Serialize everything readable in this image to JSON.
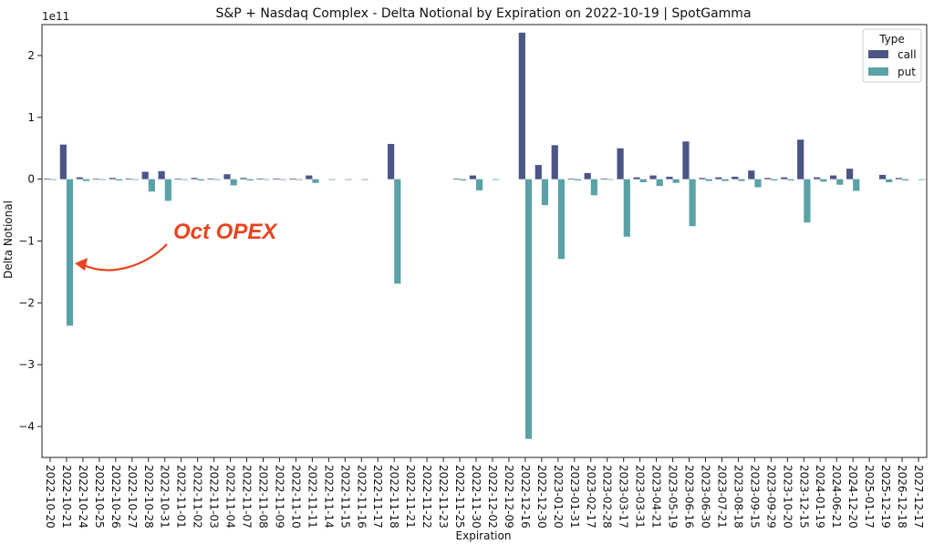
{
  "chart_data": {
    "type": "bar",
    "title": "S&P + Nasdaq Complex - Delta Notional by Expiration on 2022-10-19 | SpotGamma",
    "xlabel": "Expiration",
    "ylabel": "Delta Notional",
    "y_scale_label": "1e11",
    "y_unit": 100000000000,
    "ylim": [
      -4.5,
      2.5
    ],
    "yticks": [
      -4,
      -3,
      -2,
      -1,
      0,
      1,
      2
    ],
    "grid": false,
    "legend": {
      "title": "Type",
      "placement": "top-right"
    },
    "categories": [
      "2022-10-20",
      "2022-10-21",
      "2022-10-24",
      "2022-10-25",
      "2022-10-26",
      "2022-10-27",
      "2022-10-28",
      "2022-10-31",
      "2022-11-01",
      "2022-11-02",
      "2022-11-03",
      "2022-11-04",
      "2022-11-07",
      "2022-11-08",
      "2022-11-09",
      "2022-11-10",
      "2022-11-11",
      "2022-11-14",
      "2022-11-15",
      "2022-11-16",
      "2022-11-17",
      "2022-11-18",
      "2022-11-21",
      "2022-11-22",
      "2022-11-23",
      "2022-11-25",
      "2022-11-30",
      "2022-12-02",
      "2022-12-09",
      "2022-12-16",
      "2022-12-30",
      "2023-01-20",
      "2023-01-31",
      "2023-02-17",
      "2023-02-28",
      "2023-03-17",
      "2023-03-31",
      "2023-04-21",
      "2023-05-19",
      "2023-06-16",
      "2023-06-30",
      "2023-07-21",
      "2023-08-18",
      "2023-09-15",
      "2023-09-29",
      "2023-10-20",
      "2023-12-15",
      "2024-01-19",
      "2024-06-21",
      "2024-12-20",
      "2025-01-17",
      "2025-12-19",
      "2026-12-18",
      "2027-12-17"
    ],
    "series": [
      {
        "name": "call",
        "color": "#4b5586",
        "values": [
          0.01,
          0.56,
          0.03,
          0.01,
          0.02,
          0.01,
          0.12,
          0.13,
          0.01,
          0.02,
          0.01,
          0.08,
          0.02,
          0.01,
          0.01,
          0.01,
          0.06,
          0.0,
          0.0,
          0.0,
          0.0,
          0.57,
          0.0,
          0.0,
          0.0,
          0.01,
          0.06,
          0.0,
          0.0,
          2.37,
          0.23,
          0.55,
          0.01,
          0.1,
          0.01,
          0.5,
          0.03,
          0.06,
          0.04,
          0.61,
          0.02,
          0.03,
          0.04,
          0.14,
          0.02,
          0.03,
          0.64,
          0.03,
          0.06,
          0.17,
          0.0,
          0.07,
          0.02,
          0.0
        ]
      },
      {
        "name": "put",
        "color": "#5aa2a6",
        "values": [
          -0.01,
          -2.37,
          -0.03,
          -0.01,
          -0.02,
          -0.01,
          -0.2,
          -0.35,
          -0.01,
          -0.02,
          -0.01,
          -0.1,
          -0.02,
          -0.01,
          -0.01,
          -0.01,
          -0.06,
          -0.01,
          -0.01,
          -0.01,
          0.0,
          -1.69,
          0.0,
          0.0,
          0.0,
          -0.02,
          -0.18,
          -0.01,
          0.0,
          -4.2,
          -0.42,
          -1.29,
          -0.02,
          -0.26,
          -0.01,
          -0.93,
          -0.05,
          -0.11,
          -0.06,
          -0.76,
          -0.03,
          -0.03,
          -0.03,
          -0.13,
          -0.02,
          -0.02,
          -0.7,
          -0.04,
          -0.09,
          -0.19,
          0.0,
          -0.05,
          -0.02,
          -0.01
        ]
      }
    ],
    "annotations": [
      {
        "text": "Oct OPEX",
        "color": "#e8441f",
        "points_to": "2022-10-21"
      }
    ]
  }
}
